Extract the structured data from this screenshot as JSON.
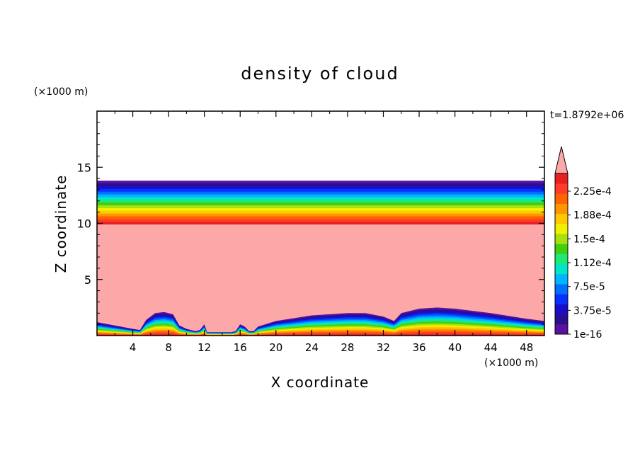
{
  "chart_data": {
    "type": "heatmap",
    "title": "density of cloud",
    "xlabel": "X coordinate",
    "ylabel": "Z coordinate",
    "x_unit_label": "(×1000 m)",
    "y_unit_label": "(×1000 m)",
    "time_label": "t=1.8792e+06",
    "xlim": [
      0,
      50
    ],
    "ylim": [
      0,
      20
    ],
    "x_ticks": [
      4,
      8,
      12,
      16,
      20,
      24,
      28,
      32,
      36,
      40,
      44,
      48
    ],
    "y_ticks": [
      5,
      10,
      15
    ],
    "colorbar": {
      "labels": [
        "2.25e-4",
        "1.88e-4",
        "1.5e-4",
        "1.12e-4",
        "7.5e-5",
        "3.75e-5",
        "1e-16"
      ],
      "colors": [
        "#5a10a0",
        "#2a0e90",
        "#1810c8",
        "#0a30ff",
        "#0070ff",
        "#00b4ff",
        "#00e6c8",
        "#20e878",
        "#40d010",
        "#a8e010",
        "#f0f000",
        "#ffc800",
        "#ff9600",
        "#ff6400",
        "#ff3c28",
        "#e82020"
      ],
      "over_color": "#fca8a8"
    },
    "cloud_layer": {
      "top_km": 13.8,
      "bottom_km": 9.9,
      "color_above": "#ffffff",
      "color_inside": "#fca8a8"
    },
    "surface_profile": {
      "x": [
        0,
        2,
        4,
        4.8,
        5.5,
        6.5,
        7.5,
        8.5,
        9.2,
        10,
        11,
        11.5,
        12,
        12.3,
        13,
        14,
        15,
        15.5,
        16,
        16.5,
        17,
        17.5,
        18,
        20,
        24,
        28,
        30,
        32,
        33.2,
        34,
        36,
        38,
        40,
        44,
        48,
        50
      ],
      "y": [
        1.2,
        0.9,
        0.6,
        0.5,
        1.4,
        2.0,
        2.1,
        1.9,
        0.9,
        0.6,
        0.4,
        0.5,
        1.0,
        0.3,
        0.3,
        0.3,
        0.3,
        0.4,
        1.0,
        0.8,
        0.4,
        0.4,
        0.8,
        1.3,
        1.8,
        2.0,
        2.0,
        1.7,
        1.3,
        2.0,
        2.4,
        2.5,
        2.4,
        2.0,
        1.5,
        1.3
      ]
    }
  }
}
